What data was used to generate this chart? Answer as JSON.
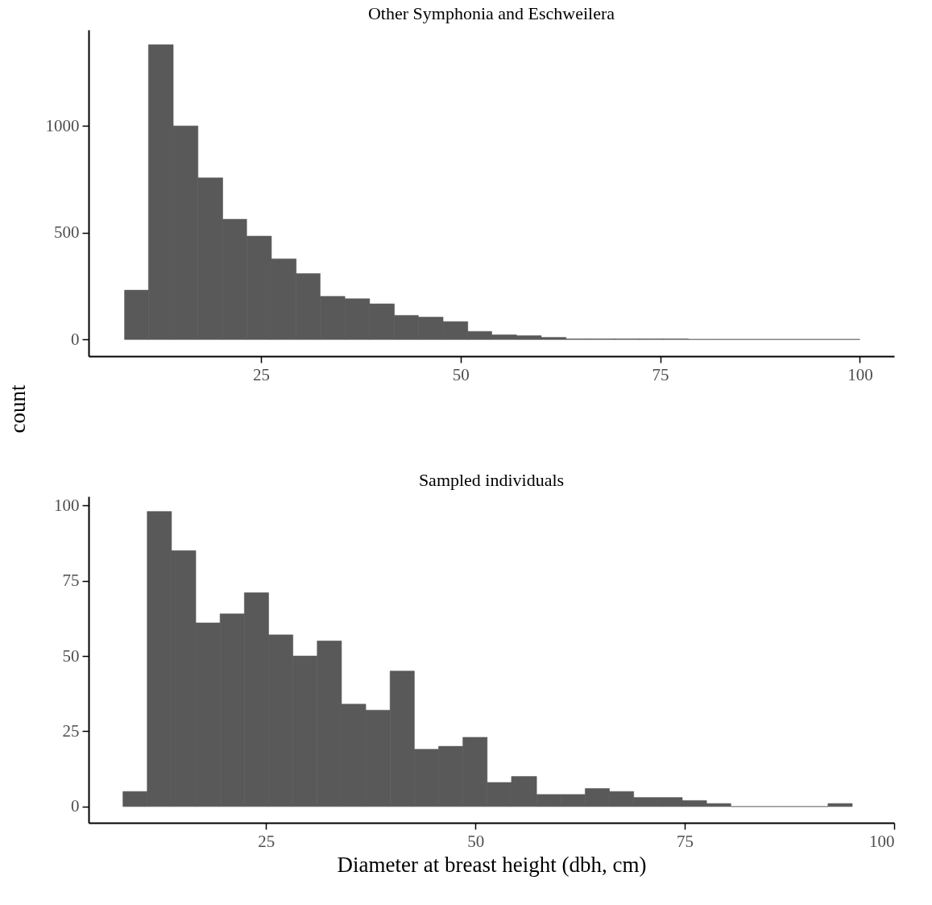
{
  "chart_data": [
    {
      "type": "histogram",
      "title": "Other Symphonia and Eschweilera",
      "ylabel": "count",
      "color": "#595959",
      "bins": [
        7.9,
        10.9,
        14.0,
        17.1,
        20.2,
        23.2,
        26.3,
        29.4,
        32.4,
        35.5,
        38.6,
        41.7,
        44.7,
        47.8,
        50.9,
        53.9,
        57.0,
        60.1,
        63.2,
        66.2,
        69.3,
        72.4,
        75.4,
        78.5,
        81.6,
        84.6,
        87.7,
        90.8,
        93.9,
        96.9,
        100
      ],
      "values": [
        231,
        1380,
        1000,
        757,
        563,
        484,
        378,
        309,
        202,
        191,
        167,
        113,
        105,
        84,
        38,
        22,
        18,
        10,
        3,
        3,
        3,
        3,
        3,
        1,
        1,
        1,
        1,
        1,
        1,
        1
      ],
      "xlim": [
        3.4,
        104.3
      ],
      "xticks": [
        25,
        50,
        75,
        100
      ],
      "ylim": [
        -78,
        1450
      ],
      "yticks": [
        0,
        500,
        1000
      ]
    },
    {
      "type": "histogram",
      "title": "Sampled individuals",
      "xlabel": "Diameter at breast height (dbh, cm)",
      "color": "#595959",
      "bins": [
        7.9,
        10.8,
        13.7,
        16.6,
        19.5,
        22.4,
        25.3,
        28.2,
        31.1,
        34.0,
        36.9,
        39.8,
        42.7,
        45.6,
        48.5,
        51.4,
        54.3,
        57.3,
        60.2,
        63.1,
        66.0,
        68.9,
        71.8,
        74.7,
        77.6,
        80.5,
        83.4,
        86.3,
        89.2,
        92.1,
        95.0
      ],
      "values": [
        5,
        98,
        85,
        61,
        64,
        71,
        57,
        50,
        55,
        34,
        32,
        45,
        19,
        20,
        23,
        8,
        10,
        4,
        4,
        6,
        5,
        3,
        3,
        2,
        1,
        0,
        0,
        0,
        0,
        1
      ],
      "xlim": [
        3.8,
        100
      ],
      "xticks": [
        25,
        50,
        75,
        100
      ],
      "ylim": [
        -5.4,
        103
      ],
      "yticks": [
        0,
        25,
        50,
        75,
        100
      ]
    }
  ]
}
